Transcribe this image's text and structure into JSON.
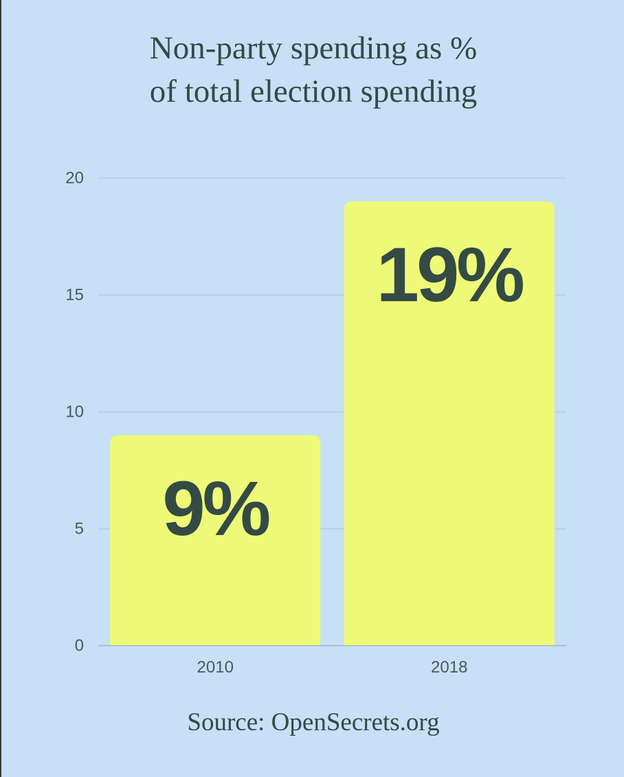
{
  "title_lines": [
    "Non-party spending as %",
    "of total election spending"
  ],
  "source": "Source: OpenSecrets.org",
  "colors": {
    "background": "#c7e0f7",
    "bar": "#eefa77",
    "text": "#344a45",
    "grid": "#a9c3dc",
    "axis_text": "#4a5a58"
  },
  "chart_data": {
    "type": "bar",
    "title": "Non-party spending as % of total election spending",
    "categories": [
      "2010",
      "2018"
    ],
    "values": [
      9,
      19
    ],
    "value_labels": [
      "9%",
      "19%"
    ],
    "xlabel": "",
    "ylabel": "",
    "ylim": [
      0,
      20
    ],
    "yticks": [
      0,
      5,
      10,
      15,
      20
    ],
    "grid": true,
    "legend": "none"
  }
}
